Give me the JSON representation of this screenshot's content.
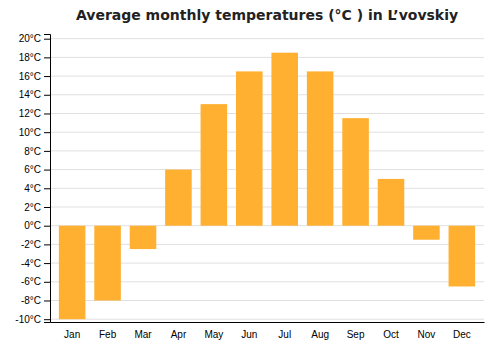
{
  "chart_data": {
    "type": "bar",
    "title": "Average monthly temperatures (°C ) in L’vovskiy",
    "categories": [
      "Jan",
      "Feb",
      "Mar",
      "Apr",
      "May",
      "Jun",
      "Jul",
      "Aug",
      "Sep",
      "Oct",
      "Nov",
      "Dec"
    ],
    "values": [
      -10,
      -8,
      -2.5,
      6,
      13,
      16.5,
      18.5,
      16.5,
      11.5,
      5,
      -1.5,
      -6.5
    ],
    "color": "#FFB030",
    "ylim": [
      -10.3,
      20.5
    ],
    "yticks": [
      {
        "value": -10,
        "label": "-10°C"
      },
      {
        "value": -8,
        "label": "-8°C"
      },
      {
        "value": -6,
        "label": "-6°C"
      },
      {
        "value": -4,
        "label": "-4°C"
      },
      {
        "value": -2,
        "label": "-2°C"
      },
      {
        "value": 0,
        "label": "0°C"
      },
      {
        "value": 2,
        "label": "2°C"
      },
      {
        "value": 4,
        "label": "4°C"
      },
      {
        "value": 6,
        "label": "6°C"
      },
      {
        "value": 8,
        "label": "8°C"
      },
      {
        "value": 10,
        "label": "10°C"
      },
      {
        "value": 12,
        "label": "12°C"
      },
      {
        "value": 14,
        "label": "14°C"
      },
      {
        "value": 16,
        "label": "16°C"
      },
      {
        "value": 18,
        "label": "18°C"
      },
      {
        "value": 20,
        "label": "20°C"
      }
    ],
    "grid": true
  }
}
